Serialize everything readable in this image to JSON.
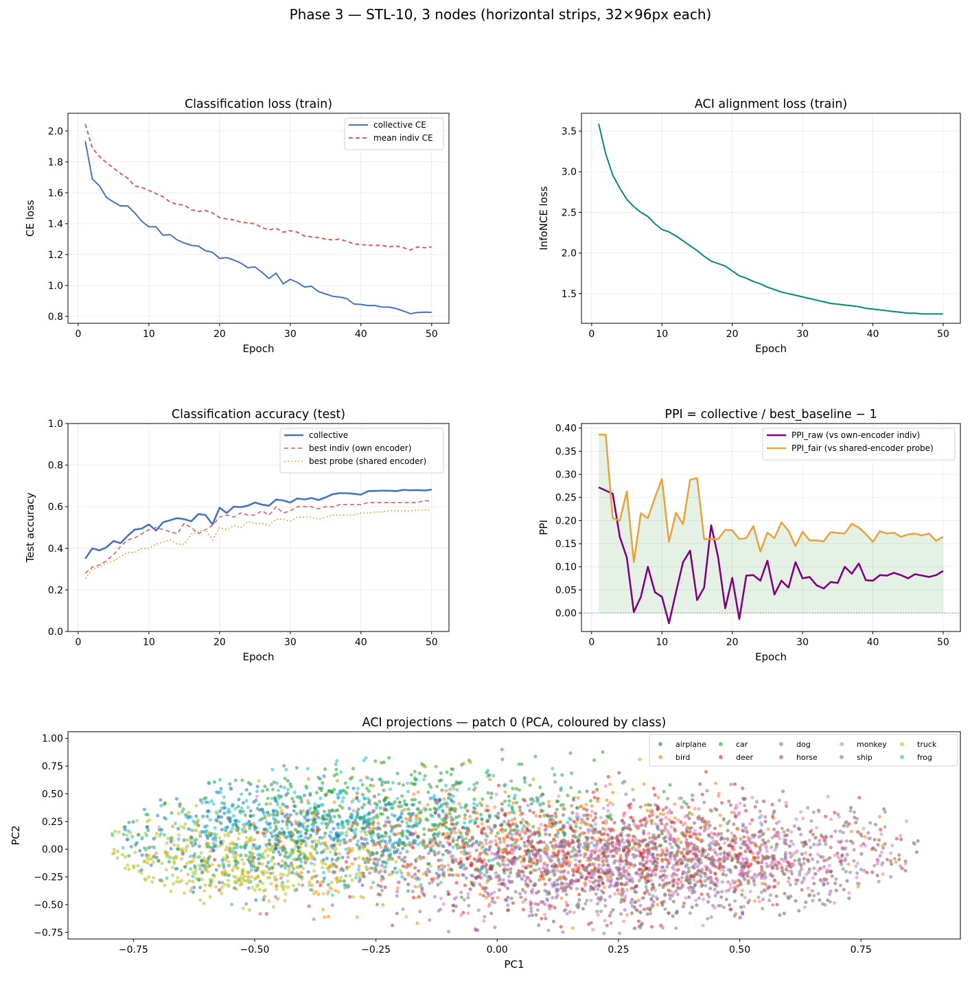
{
  "figure": {
    "suptitle": "Phase 3 — STL-10, 3 nodes (horizontal strips, 32×96px each)"
  },
  "chart_data": [
    {
      "id": "ce",
      "type": "line",
      "title": "Classification loss (train)",
      "xlabel": "Epoch",
      "ylabel": "CE loss",
      "xlim": [
        -1.45,
        52.45
      ],
      "ylim": [
        0.755,
        2.115
      ],
      "xticks": [
        0,
        10,
        20,
        30,
        40,
        50
      ],
      "yticks": [
        0.8,
        1.0,
        1.2,
        1.4,
        1.6,
        1.8,
        2.0
      ],
      "ytick_decimals": 1,
      "grid": true,
      "legend": "top-right",
      "x_start": 1,
      "series": [
        {
          "name": "collective CE",
          "color": "#4472c4",
          "dash": "solid",
          "width": 2,
          "values": [
            1.935,
            1.69,
            1.645,
            1.57,
            1.54,
            1.515,
            1.515,
            1.47,
            1.415,
            1.38,
            1.38,
            1.325,
            1.33,
            1.295,
            1.275,
            1.26,
            1.255,
            1.225,
            1.215,
            1.175,
            1.18,
            1.165,
            1.145,
            1.115,
            1.12,
            1.085,
            1.045,
            1.08,
            1.01,
            1.04,
            1.02,
            0.99,
            0.995,
            0.96,
            0.945,
            0.93,
            0.925,
            0.915,
            0.88,
            0.877,
            0.87,
            0.87,
            0.86,
            0.86,
            0.85,
            0.835,
            0.817,
            0.825,
            0.827,
            0.826
          ]
        },
        {
          "name": "mean indiv CE",
          "color": "#d45f5f",
          "dash": "6,4",
          "width": 2,
          "values": [
            2.045,
            1.89,
            1.835,
            1.795,
            1.76,
            1.725,
            1.695,
            1.645,
            1.635,
            1.615,
            1.595,
            1.575,
            1.54,
            1.525,
            1.52,
            1.49,
            1.48,
            1.485,
            1.47,
            1.44,
            1.43,
            1.425,
            1.41,
            1.405,
            1.4,
            1.375,
            1.36,
            1.37,
            1.345,
            1.355,
            1.345,
            1.32,
            1.315,
            1.31,
            1.3,
            1.295,
            1.3,
            1.285,
            1.27,
            1.265,
            1.26,
            1.26,
            1.26,
            1.25,
            1.255,
            1.245,
            1.23,
            1.25,
            1.245,
            1.25
          ]
        }
      ]
    },
    {
      "id": "aci",
      "type": "line",
      "title": "ACI alignment loss (train)",
      "xlabel": "Epoch",
      "ylabel": "InfoNCE loss",
      "xlim": [
        -1.45,
        52.45
      ],
      "ylim": [
        1.135,
        3.72
      ],
      "xticks": [
        0,
        10,
        20,
        30,
        40,
        50
      ],
      "yticks": [
        1.5,
        2.0,
        2.5,
        3.0,
        3.5
      ],
      "ytick_decimals": 1,
      "grid": true,
      "legend": "none",
      "x_start": 1,
      "series": [
        {
          "name": "",
          "color": "#00897b",
          "dash": "solid",
          "width": 2,
          "values": [
            3.59,
            3.22,
            2.96,
            2.8,
            2.66,
            2.57,
            2.5,
            2.45,
            2.36,
            2.29,
            2.26,
            2.21,
            2.15,
            2.09,
            2.03,
            1.96,
            1.9,
            1.87,
            1.84,
            1.78,
            1.72,
            1.69,
            1.65,
            1.62,
            1.58,
            1.55,
            1.52,
            1.5,
            1.48,
            1.46,
            1.44,
            1.42,
            1.4,
            1.38,
            1.37,
            1.36,
            1.35,
            1.34,
            1.32,
            1.31,
            1.3,
            1.29,
            1.28,
            1.27,
            1.26,
            1.26,
            1.25,
            1.25,
            1.25,
            1.25
          ]
        }
      ]
    },
    {
      "id": "acc",
      "type": "line",
      "title": "Classification accuracy (test)",
      "xlabel": "Epoch",
      "ylabel": "Test accuracy",
      "xlim": [
        -1.45,
        52.45
      ],
      "ylim": [
        0.0,
        1.0
      ],
      "xticks": [
        0,
        10,
        20,
        30,
        40,
        50
      ],
      "yticks": [
        0.0,
        0.2,
        0.4,
        0.6,
        0.8,
        1.0
      ],
      "ytick_decimals": 1,
      "grid": true,
      "legend": "top-right",
      "x_start": 1,
      "series": [
        {
          "name": "collective",
          "color": "#4472c4",
          "dash": "solid",
          "width": 2.6,
          "values": [
            0.35,
            0.4,
            0.39,
            0.405,
            0.435,
            0.425,
            0.46,
            0.49,
            0.495,
            0.515,
            0.485,
            0.525,
            0.535,
            0.545,
            0.54,
            0.53,
            0.565,
            0.56,
            0.515,
            0.595,
            0.57,
            0.6,
            0.598,
            0.605,
            0.62,
            0.61,
            0.605,
            0.635,
            0.63,
            0.62,
            0.64,
            0.635,
            0.642,
            0.632,
            0.645,
            0.66,
            0.665,
            0.665,
            0.662,
            0.658,
            0.675,
            0.676,
            0.677,
            0.677,
            0.675,
            0.681,
            0.679,
            0.68,
            0.678,
            0.682
          ]
        },
        {
          "name": "best indiv (own encoder)",
          "color": "#d45f5f",
          "dash": "6,4",
          "width": 1.6,
          "values": [
            0.28,
            0.31,
            0.32,
            0.34,
            0.37,
            0.41,
            0.44,
            0.45,
            0.47,
            0.49,
            0.5,
            0.49,
            0.48,
            0.47,
            0.52,
            0.5,
            0.47,
            0.49,
            0.51,
            0.55,
            0.56,
            0.55,
            0.57,
            0.56,
            0.56,
            0.58,
            0.56,
            0.6,
            0.57,
            0.58,
            0.6,
            0.6,
            0.6,
            0.59,
            0.6,
            0.6,
            0.61,
            0.61,
            0.61,
            0.61,
            0.62,
            0.62,
            0.62,
            0.62,
            0.62,
            0.62,
            0.62,
            0.62,
            0.63,
            0.625
          ]
        },
        {
          "name": "best probe (shared encoder)",
          "color": "#e8a33c",
          "dash": "2,3",
          "width": 1.6,
          "values": [
            0.255,
            0.3,
            0.31,
            0.33,
            0.34,
            0.36,
            0.38,
            0.38,
            0.4,
            0.4,
            0.42,
            0.43,
            0.44,
            0.42,
            0.42,
            0.47,
            0.48,
            0.49,
            0.44,
            0.5,
            0.49,
            0.51,
            0.5,
            0.53,
            0.52,
            0.52,
            0.51,
            0.54,
            0.54,
            0.53,
            0.55,
            0.55,
            0.55,
            0.54,
            0.55,
            0.56,
            0.56,
            0.56,
            0.56,
            0.57,
            0.57,
            0.575,
            0.575,
            0.58,
            0.58,
            0.58,
            0.58,
            0.585,
            0.585,
            0.585
          ]
        }
      ]
    },
    {
      "id": "ppi",
      "type": "line",
      "title": "PPI = collective / best_baseline − 1",
      "xlabel": "Epoch",
      "ylabel": "PPI",
      "xlim": [
        -1.45,
        52.45
      ],
      "ylim": [
        -0.04,
        0.41
      ],
      "xticks": [
        0,
        10,
        20,
        30,
        40,
        50
      ],
      "yticks": [
        0.0,
        0.05,
        0.1,
        0.15,
        0.2,
        0.25,
        0.3,
        0.35,
        0.4
      ],
      "ytick_decimals": 2,
      "grid": true,
      "legend": "top-right",
      "x_start": 1,
      "zero_line": true,
      "fill_between": {
        "series": 1,
        "color": "#2e8b2e",
        "alpha": 0.12
      },
      "series": [
        {
          "name": "PPI_raw  (vs own-encoder indiv)",
          "color": "#800080",
          "dash": "solid",
          "width": 2.6,
          "values": [
            0.272,
            0.265,
            0.258,
            0.165,
            0.12,
            0.002,
            0.035,
            0.1,
            0.045,
            0.035,
            -0.022,
            0.045,
            0.11,
            0.135,
            0.028,
            0.055,
            0.19,
            0.12,
            0.01,
            0.076,
            -0.013,
            0.081,
            0.082,
            0.07,
            0.113,
            0.04,
            0.07,
            0.055,
            0.11,
            0.075,
            0.078,
            0.06,
            0.053,
            0.067,
            0.065,
            0.1,
            0.085,
            0.107,
            0.071,
            0.07,
            0.082,
            0.081,
            0.087,
            0.082,
            0.075,
            0.084,
            0.081,
            0.078,
            0.082,
            0.091
          ]
        },
        {
          "name": "PPI_fair (vs shared-encoder probe)",
          "color": "#e8a33c",
          "dash": "solid",
          "width": 2.6,
          "values": [
            0.386,
            0.386,
            0.205,
            0.2,
            0.263,
            0.11,
            0.216,
            0.205,
            0.25,
            0.29,
            0.154,
            0.217,
            0.192,
            0.288,
            0.292,
            0.16,
            0.16,
            0.16,
            0.18,
            0.179,
            0.16,
            0.162,
            0.188,
            0.133,
            0.174,
            0.162,
            0.196,
            0.178,
            0.145,
            0.176,
            0.157,
            0.157,
            0.155,
            0.175,
            0.173,
            0.172,
            0.193,
            0.185,
            0.171,
            0.154,
            0.177,
            0.172,
            0.174,
            0.165,
            0.17,
            0.172,
            0.168,
            0.172,
            0.156,
            0.165
          ]
        }
      ]
    },
    {
      "id": "pca",
      "type": "scatter",
      "title": "ACI projections — patch 0 (PCA, coloured by class)",
      "xlabel": "PC1",
      "ylabel": "PC2",
      "xlim": [
        -0.885,
        0.955
      ],
      "ylim": [
        -0.81,
        1.06
      ],
      "xticks": [
        -0.75,
        -0.5,
        -0.25,
        0.0,
        0.25,
        0.5,
        0.75
      ],
      "yticks": [
        -0.75,
        -0.5,
        -0.25,
        0.0,
        0.25,
        0.5,
        0.75,
        1.0
      ],
      "ytick_decimals": 2,
      "xtick_decimals": 2,
      "grid": false,
      "legend": "top-right",
      "classes": [
        {
          "name": "airplane",
          "color": "#1f77b4",
          "center": [
            -0.42,
            0.12
          ],
          "spread": [
            0.2,
            0.22
          ],
          "count": 420
        },
        {
          "name": "car",
          "color": "#2ca02c",
          "center": [
            -0.2,
            0.3
          ],
          "spread": [
            0.25,
            0.28
          ],
          "count": 500
        },
        {
          "name": "dog",
          "color": "#9467bd",
          "center": [
            0.2,
            -0.2
          ],
          "spread": [
            0.27,
            0.25
          ],
          "count": 500
        },
        {
          "name": "monkey",
          "color": "#e377c2",
          "center": [
            0.35,
            -0.05
          ],
          "spread": [
            0.25,
            0.25
          ],
          "count": 500
        },
        {
          "name": "truck",
          "color": "#bcbd22",
          "center": [
            -0.55,
            -0.1
          ],
          "spread": [
            0.16,
            0.2
          ],
          "count": 500
        },
        {
          "name": "bird",
          "color": "#ff7f0e",
          "center": [
            0.05,
            0.05
          ],
          "spread": [
            0.3,
            0.28
          ],
          "count": 450
        },
        {
          "name": "deer",
          "color": "#d62728",
          "center": [
            0.2,
            -0.05
          ],
          "spread": [
            0.28,
            0.27
          ],
          "count": 450
        },
        {
          "name": "horse",
          "color": "#8c564b",
          "center": [
            0.32,
            -0.12
          ],
          "spread": [
            0.27,
            0.26
          ],
          "count": 550
        },
        {
          "name": "ship",
          "color": "#7f7f7f",
          "center": [
            0.4,
            -0.1
          ],
          "spread": [
            0.25,
            0.25
          ],
          "count": 450
        },
        {
          "name": "frog",
          "color": "#17becf",
          "center": [
            -0.35,
            0.2
          ],
          "spread": [
            0.25,
            0.25
          ],
          "count": 450
        }
      ]
    }
  ]
}
